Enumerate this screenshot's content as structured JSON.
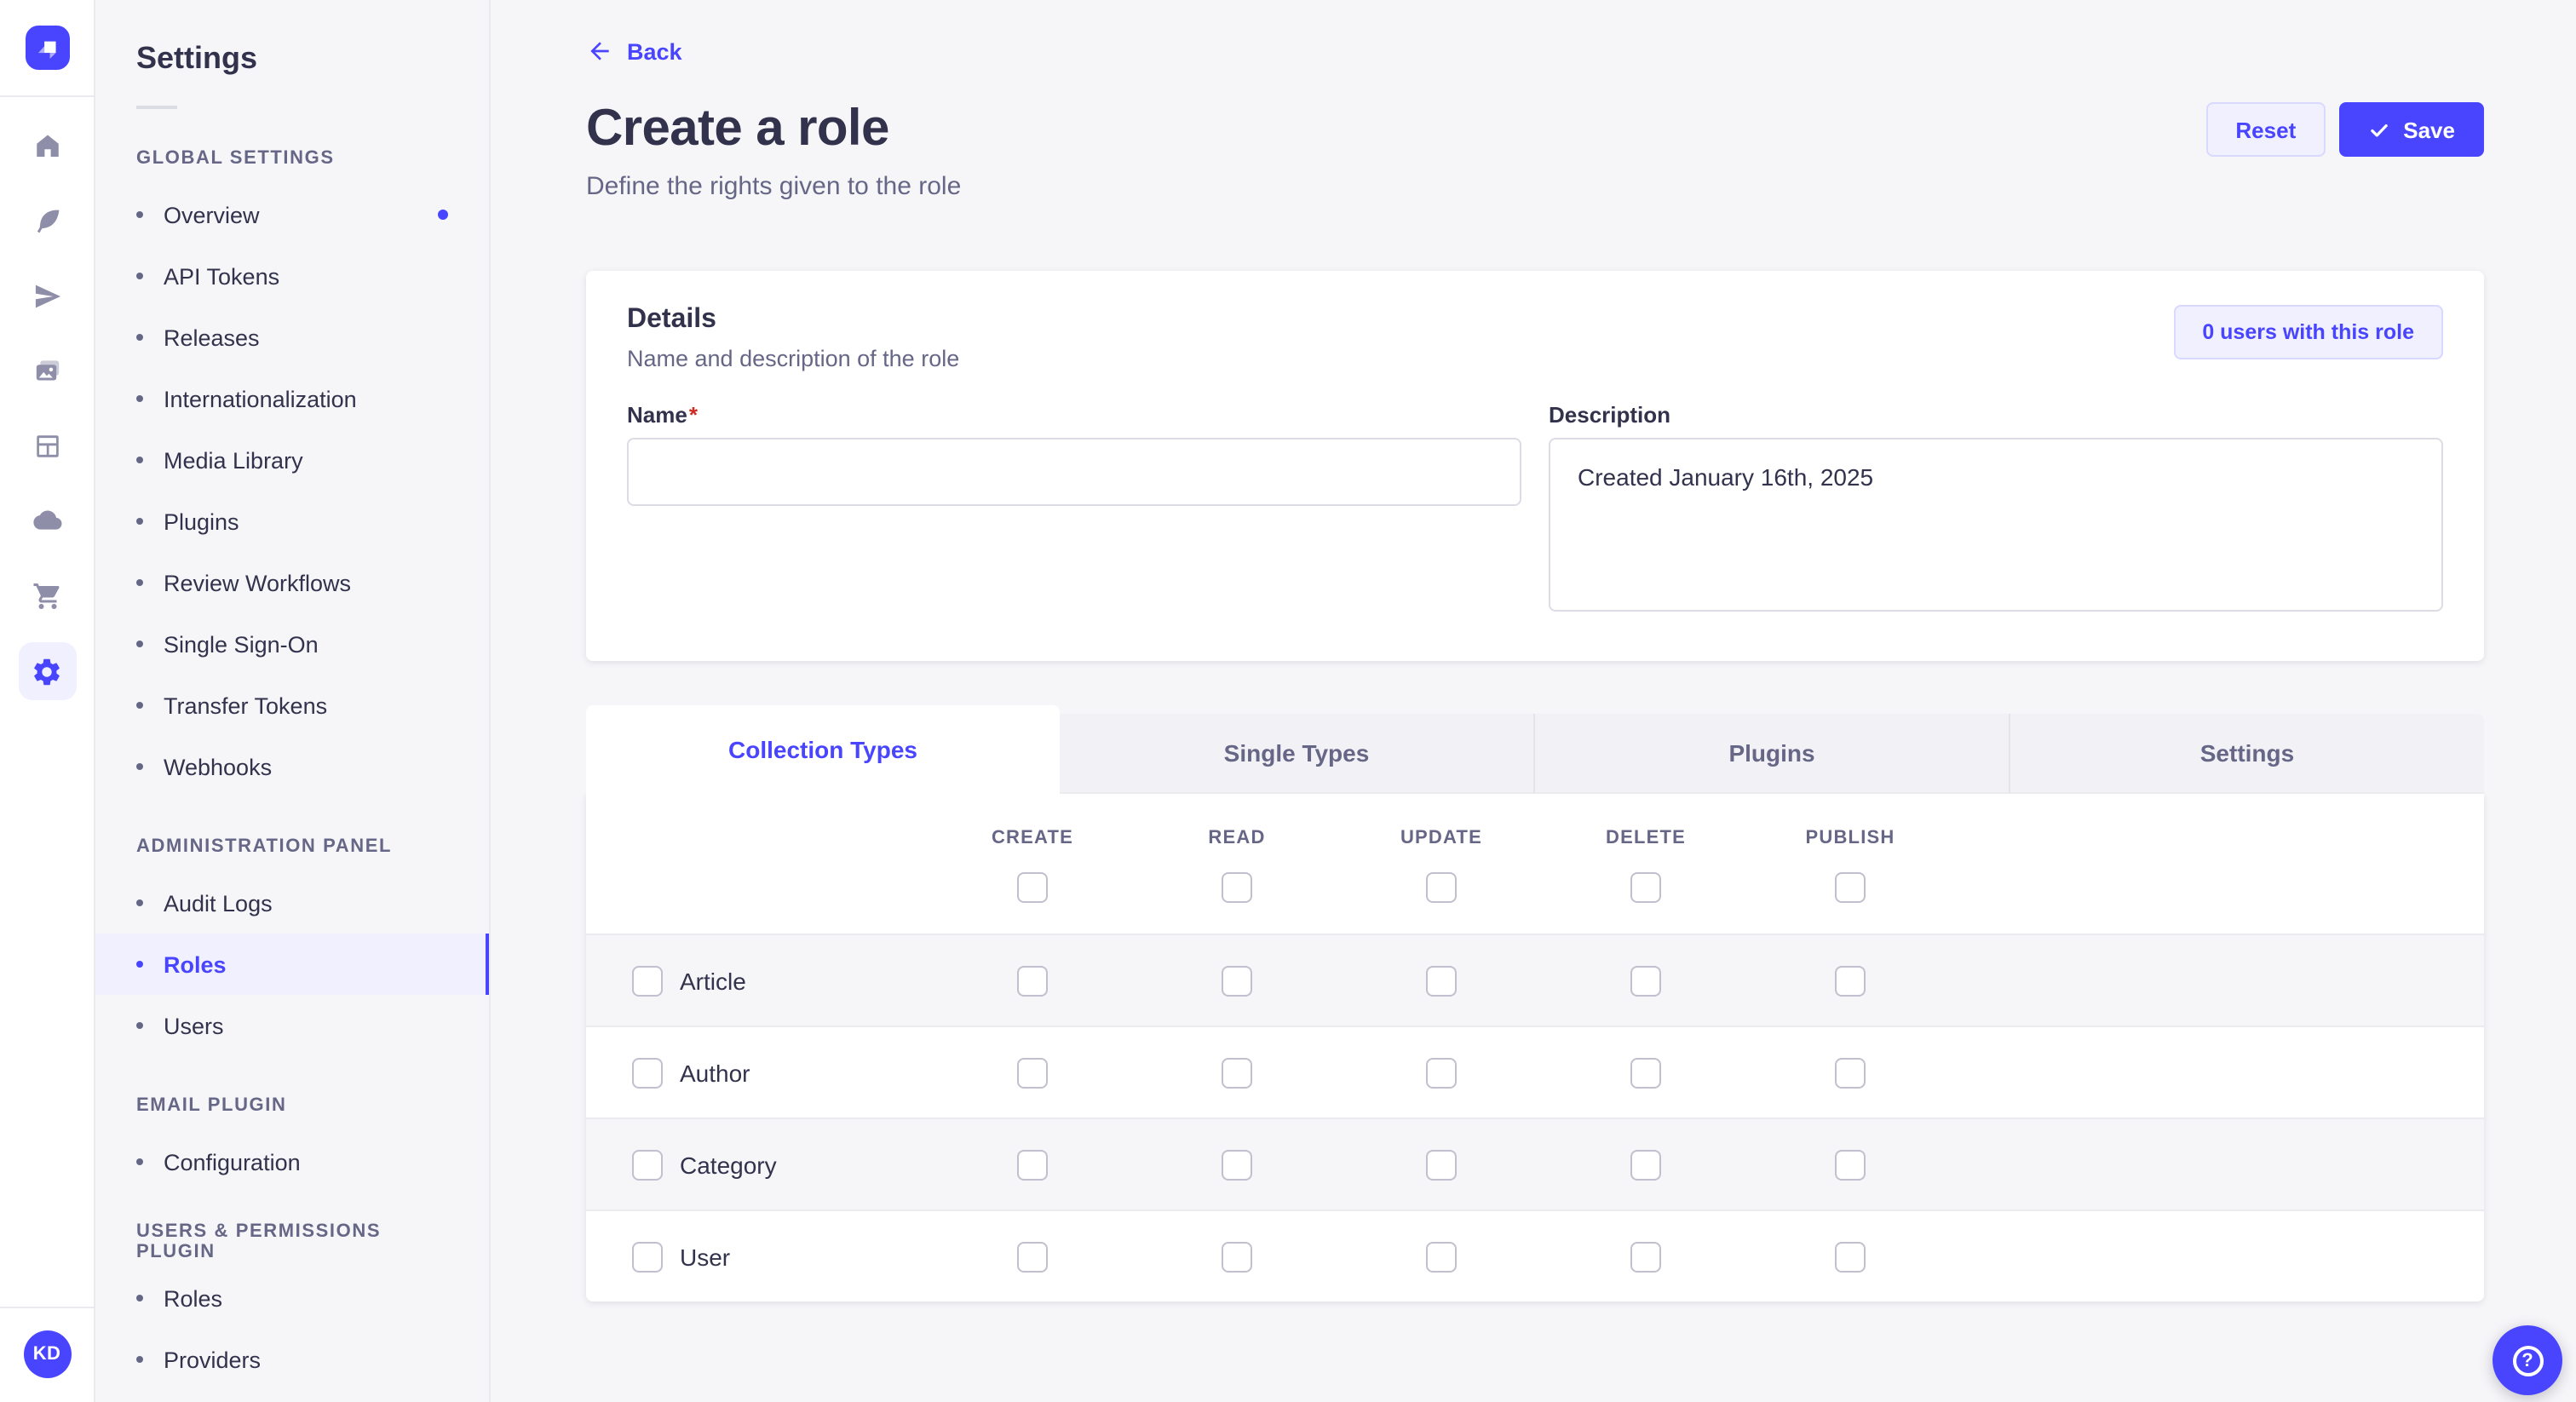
{
  "rail": {
    "logo_icon": "strapi-logo",
    "icons": [
      {
        "name": "home",
        "active": false
      },
      {
        "name": "feather",
        "active": false
      },
      {
        "name": "paper-plane",
        "active": false
      },
      {
        "name": "media-library",
        "active": false
      },
      {
        "name": "layout",
        "active": false
      },
      {
        "name": "cloud",
        "active": false
      },
      {
        "name": "marketplace-cart",
        "active": false
      },
      {
        "name": "settings-gear",
        "active": true
      }
    ],
    "avatar_initials": "KD"
  },
  "sidebar": {
    "title": "Settings",
    "sections": [
      {
        "label": "GLOBAL SETTINGS",
        "items": [
          {
            "label": "Overview",
            "active": false,
            "notification_dot": true
          },
          {
            "label": "API Tokens",
            "active": false
          },
          {
            "label": "Releases",
            "active": false
          },
          {
            "label": "Internationalization",
            "active": false
          },
          {
            "label": "Media Library",
            "active": false
          },
          {
            "label": "Plugins",
            "active": false
          },
          {
            "label": "Review Workflows",
            "active": false
          },
          {
            "label": "Single Sign-On",
            "active": false
          },
          {
            "label": "Transfer Tokens",
            "active": false
          },
          {
            "label": "Webhooks",
            "active": false
          }
        ]
      },
      {
        "label": "ADMINISTRATION PANEL",
        "items": [
          {
            "label": "Audit Logs",
            "active": false
          },
          {
            "label": "Roles",
            "active": true
          },
          {
            "label": "Users",
            "active": false
          }
        ]
      },
      {
        "label": "EMAIL PLUGIN",
        "items": [
          {
            "label": "Configuration",
            "active": false
          }
        ]
      },
      {
        "label": "USERS & PERMISSIONS PLUGIN",
        "items": [
          {
            "label": "Roles",
            "active": false
          },
          {
            "label": "Providers",
            "active": false
          }
        ]
      }
    ]
  },
  "header": {
    "back_label": "Back",
    "back_icon": "arrow-left-icon",
    "title": "Create a role",
    "subtitle": "Define the rights given to the role",
    "reset_label": "Reset",
    "save_label": "Save",
    "save_icon": "check-icon"
  },
  "details": {
    "title": "Details",
    "subtitle": "Name and description of the role",
    "users_badge": "0 users with this role",
    "name_label": "Name",
    "name_required_mark": "*",
    "name_value": "",
    "name_placeholder": "",
    "description_label": "Description",
    "description_value": "Created January 16th, 2025"
  },
  "permissions": {
    "tabs": [
      {
        "label": "Collection Types",
        "active": true
      },
      {
        "label": "Single Types",
        "active": false
      },
      {
        "label": "Plugins",
        "active": false
      },
      {
        "label": "Settings",
        "active": false
      }
    ],
    "columns": [
      "CREATE",
      "READ",
      "UPDATE",
      "DELETE",
      "PUBLISH"
    ],
    "rows": [
      {
        "label": "Article",
        "checked": [
          false,
          false,
          false,
          false,
          false
        ]
      },
      {
        "label": "Author",
        "checked": [
          false,
          false,
          false,
          false,
          false
        ]
      },
      {
        "label": "Category",
        "checked": [
          false,
          false,
          false,
          false,
          false
        ]
      },
      {
        "label": "User",
        "checked": [
          false,
          false,
          false,
          false,
          false
        ]
      }
    ],
    "header_checks": [
      false,
      false,
      false,
      false,
      false
    ]
  },
  "help": {
    "icon": "question-mark-icon"
  },
  "colors": {
    "primary": "#4945ff",
    "primary_light_bg": "#f0f0ff",
    "primary_light_border": "#d9d8ff",
    "text_dark": "#32324d",
    "text_muted": "#666687",
    "border": "#eaeaef",
    "checkbox_border": "#c0c0cf",
    "surface": "#ffffff",
    "background": "#f6f6f9",
    "required_red": "#d02b20",
    "rail_icon": "#8e8ea9"
  }
}
